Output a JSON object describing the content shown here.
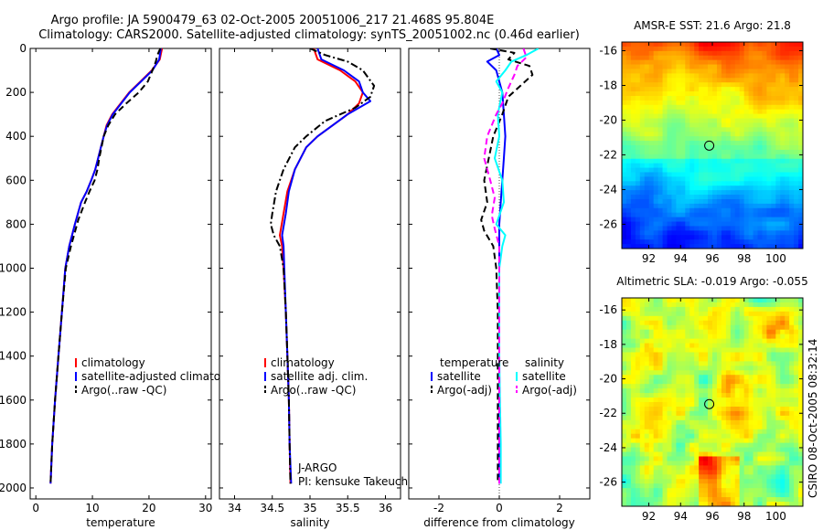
{
  "header": {
    "title_line1": "Argo profile: JA 5900479_63 02-Oct-2005 20051006_217 21.468S 95.804E",
    "title_line2": "Climatology: CARS2000. Satellite-adjusted climatology: synTS_20051002.nc (0.46d earlier)"
  },
  "side_label": "CSIRO 08-Oct-2005 08:32:14",
  "colors": {
    "red": "#ff0000",
    "blue": "#0000ff",
    "black": "#000000",
    "cyan": "#00ffff",
    "magenta": "#ff00ff"
  },
  "chart_data": [
    {
      "type": "line",
      "id": "temperature",
      "xlabel": "temperature",
      "ylabel": "",
      "xlim": [
        -1,
        31
      ],
      "ylim": [
        0,
        2050
      ],
      "y_inverted": true,
      "xticks": [
        0,
        10,
        20,
        30
      ],
      "yticks": [
        0,
        200,
        400,
        600,
        800,
        1000,
        1200,
        1400,
        1600,
        1800,
        2000
      ],
      "legend": {
        "position": "lower-middle",
        "entries": [
          "climatology",
          "satellite-adjusted climatology",
          "Argo(..raw -QC)"
        ]
      },
      "series": [
        {
          "name": "climatology",
          "color": "red",
          "dash": "solid",
          "points": [
            [
              22.3,
              0
            ],
            [
              21.9,
              50
            ],
            [
              20.5,
              100
            ],
            [
              18.5,
              150
            ],
            [
              16.5,
              200
            ],
            [
              15,
              250
            ],
            [
              13.5,
              300
            ],
            [
              12.5,
              350
            ],
            [
              12,
              400
            ],
            [
              11.5,
              450
            ],
            [
              11,
              500
            ],
            [
              10.5,
              550
            ],
            [
              9.8,
              600
            ],
            [
              9,
              650
            ],
            [
              8,
              700
            ],
            [
              6.9,
              800
            ],
            [
              5.9,
              900
            ],
            [
              5.2,
              1000
            ],
            [
              4.6,
              1200
            ],
            [
              4,
              1400
            ],
            [
              3.4,
              1600
            ],
            [
              2.9,
              1800
            ],
            [
              2.6,
              1980
            ]
          ]
        },
        {
          "name": "satellite-adjusted climatology",
          "color": "blue",
          "dash": "solid",
          "points": [
            [
              22.1,
              0
            ],
            [
              21.8,
              50
            ],
            [
              20.6,
              100
            ],
            [
              18.6,
              150
            ],
            [
              16.6,
              200
            ],
            [
              15.1,
              250
            ],
            [
              13.6,
              300
            ],
            [
              12.6,
              350
            ],
            [
              12,
              400
            ],
            [
              11.5,
              450
            ],
            [
              11,
              500
            ],
            [
              10.5,
              550
            ],
            [
              9.8,
              600
            ],
            [
              9,
              650
            ],
            [
              8,
              700
            ],
            [
              6.9,
              800
            ],
            [
              5.9,
              900
            ],
            [
              5.2,
              1000
            ],
            [
              4.6,
              1200
            ],
            [
              4,
              1400
            ],
            [
              3.4,
              1600
            ],
            [
              2.9,
              1800
            ],
            [
              2.6,
              1980
            ]
          ]
        },
        {
          "name": "Argo(..raw -QC)",
          "color": "black",
          "dash": "dash",
          "points": [
            [
              22,
              0
            ],
            [
              21.5,
              30
            ],
            [
              21.2,
              60
            ],
            [
              20.6,
              100
            ],
            [
              19.8,
              150
            ],
            [
              18.2,
              200
            ],
            [
              16,
              250
            ],
            [
              14,
              300
            ],
            [
              12.8,
              350
            ],
            [
              12,
              400
            ],
            [
              11.6,
              450
            ],
            [
              11.2,
              500
            ],
            [
              10.9,
              550
            ],
            [
              10.4,
              600
            ],
            [
              9.5,
              650
            ],
            [
              8.7,
              700
            ],
            [
              7.5,
              780
            ],
            [
              6.2,
              900
            ],
            [
              5.3,
              1000
            ],
            [
              4.6,
              1200
            ],
            [
              4,
              1400
            ],
            [
              3.4,
              1600
            ],
            [
              2.9,
              1800
            ],
            [
              2.6,
              1980
            ]
          ]
        }
      ]
    },
    {
      "type": "line",
      "id": "salinity",
      "xlabel": "salinity",
      "ylabel": "",
      "xlim": [
        33.8,
        36.2
      ],
      "ylim": [
        0,
        2050
      ],
      "y_inverted": true,
      "xticks": [
        34,
        34.5,
        35,
        35.5,
        36
      ],
      "yticks": [
        0,
        200,
        400,
        600,
        800,
        1000,
        1200,
        1400,
        1600,
        1800,
        2000
      ],
      "legend": {
        "position": "lower-middle",
        "entries": [
          "climatology",
          "satellite adj. clim.",
          "Argo(..raw -QC)"
        ]
      },
      "annotations": [
        "J-ARGO",
        "PI: kensuke Takeuchi"
      ],
      "series": [
        {
          "name": "climatology",
          "color": "red",
          "dash": "solid",
          "points": [
            [
              35.05,
              0
            ],
            [
              35.1,
              50
            ],
            [
              35.4,
              100
            ],
            [
              35.6,
              150
            ],
            [
              35.7,
              200
            ],
            [
              35.65,
              250
            ],
            [
              35.5,
              300
            ],
            [
              35.3,
              350
            ],
            [
              35.1,
              400
            ],
            [
              34.95,
              450
            ],
            [
              34.8,
              550
            ],
            [
              34.7,
              650
            ],
            [
              34.65,
              750
            ],
            [
              34.6,
              850
            ],
            [
              34.63,
              900
            ],
            [
              34.65,
              1000
            ],
            [
              34.68,
              1200
            ],
            [
              34.7,
              1400
            ],
            [
              34.72,
              1600
            ],
            [
              34.73,
              1800
            ],
            [
              34.74,
              1980
            ]
          ]
        },
        {
          "name": "satellite adj. clim.",
          "color": "blue",
          "dash": "solid",
          "points": [
            [
              35.1,
              0
            ],
            [
              35.15,
              50
            ],
            [
              35.45,
              100
            ],
            [
              35.65,
              150
            ],
            [
              35.7,
              200
            ],
            [
              35.8,
              240
            ],
            [
              35.5,
              300
            ],
            [
              35.3,
              350
            ],
            [
              35.1,
              400
            ],
            [
              34.95,
              450
            ],
            [
              34.8,
              550
            ],
            [
              34.72,
              650
            ],
            [
              34.68,
              750
            ],
            [
              34.63,
              850
            ],
            [
              34.65,
              900
            ],
            [
              34.66,
              1000
            ],
            [
              34.68,
              1200
            ],
            [
              34.7,
              1400
            ],
            [
              34.72,
              1600
            ],
            [
              34.73,
              1800
            ],
            [
              34.75,
              1980
            ]
          ]
        },
        {
          "name": "Argo(..raw -QC)",
          "color": "black",
          "dash": "dashdot",
          "points": [
            [
              35,
              0
            ],
            [
              35.2,
              30
            ],
            [
              35.5,
              60
            ],
            [
              35.7,
              100
            ],
            [
              35.85,
              170
            ],
            [
              35.8,
              220
            ],
            [
              35.6,
              270
            ],
            [
              35.2,
              330
            ],
            [
              34.95,
              400
            ],
            [
              34.8,
              450
            ],
            [
              34.65,
              550
            ],
            [
              34.55,
              650
            ],
            [
              34.5,
              750
            ],
            [
              34.48,
              800
            ],
            [
              34.52,
              850
            ],
            [
              34.6,
              900
            ],
            [
              34.65,
              1000
            ],
            [
              34.68,
              1200
            ],
            [
              34.7,
              1400
            ],
            [
              34.72,
              1600
            ],
            [
              34.73,
              1800
            ],
            [
              34.74,
              1980
            ]
          ]
        }
      ]
    },
    {
      "type": "line",
      "id": "difference",
      "xlabel": "difference from climatology",
      "ylabel": "",
      "xlim": [
        -3,
        3
      ],
      "ylim": [
        0,
        2050
      ],
      "y_inverted": true,
      "xticks": [
        -2,
        0,
        2
      ],
      "yticks": [
        0,
        200,
        400,
        600,
        800,
        1000,
        1200,
        1400,
        1600,
        1800,
        2000
      ],
      "legend": {
        "position": "lower-middle",
        "groups": [
          {
            "title": "temperature",
            "entries": [
              "satellite",
              "Argo(-adj)"
            ]
          },
          {
            "title": "salinity",
            "entries": [
              "satellite",
              "Argo(-adj)"
            ]
          }
        ]
      },
      "series": [
        {
          "name": "temperature satellite",
          "color": "blue",
          "dash": "solid",
          "points": [
            [
              -0.1,
              0
            ],
            [
              0,
              30
            ],
            [
              -0.4,
              60
            ],
            [
              -0.1,
              100
            ],
            [
              0,
              150
            ],
            [
              0.1,
              200
            ],
            [
              0.15,
              300
            ],
            [
              0.2,
              400
            ],
            [
              0.15,
              500
            ],
            [
              0.1,
              600
            ],
            [
              0.05,
              700
            ],
            [
              0,
              800
            ],
            [
              0,
              1000
            ],
            [
              0,
              1200
            ],
            [
              0,
              1400
            ],
            [
              0,
              1600
            ],
            [
              0,
              1800
            ],
            [
              0,
              1980
            ]
          ]
        },
        {
          "name": "temperature Argo(-adj)",
          "color": "black",
          "dash": "dash",
          "points": [
            [
              -0.3,
              0
            ],
            [
              0.5,
              20
            ],
            [
              0.3,
              50
            ],
            [
              1,
              80
            ],
            [
              1.1,
              120
            ],
            [
              0.7,
              170
            ],
            [
              0.3,
              220
            ],
            [
              0.1,
              300
            ],
            [
              -0.2,
              400
            ],
            [
              -0.35,
              500
            ],
            [
              -0.5,
              600
            ],
            [
              -0.4,
              700
            ],
            [
              -0.6,
              780
            ],
            [
              -0.5,
              830
            ],
            [
              -0.2,
              900
            ],
            [
              -0.1,
              1000
            ],
            [
              -0.05,
              1200
            ],
            [
              -0.05,
              1400
            ],
            [
              -0.05,
              1600
            ],
            [
              -0.05,
              1800
            ],
            [
              -0.05,
              1980
            ]
          ]
        },
        {
          "name": "salinity satellite",
          "color": "cyan",
          "dash": "solid",
          "points": [
            [
              1.3,
              0
            ],
            [
              0.9,
              30
            ],
            [
              0.4,
              60
            ],
            [
              0.2,
              100
            ],
            [
              -0.1,
              150
            ],
            [
              0.1,
              200
            ],
            [
              -0.05,
              300
            ],
            [
              0,
              400
            ],
            [
              -0.15,
              500
            ],
            [
              0.1,
              600
            ],
            [
              0.15,
              700
            ],
            [
              -0.1,
              800
            ],
            [
              0.2,
              850
            ],
            [
              0.1,
              900
            ],
            [
              0,
              1000
            ],
            [
              0,
              1200
            ],
            [
              0,
              1400
            ],
            [
              0.02,
              1600
            ],
            [
              0.05,
              1800
            ],
            [
              0.05,
              1980
            ]
          ]
        },
        {
          "name": "salinity Argo(-adj)",
          "color": "magenta",
          "dash": "dash",
          "points": [
            [
              0.8,
              0
            ],
            [
              0.9,
              40
            ],
            [
              0.6,
              80
            ],
            [
              0.5,
              120
            ],
            [
              0.3,
              180
            ],
            [
              0.1,
              250
            ],
            [
              -0.1,
              300
            ],
            [
              -0.4,
              400
            ],
            [
              -0.5,
              500
            ],
            [
              -0.3,
              600
            ],
            [
              -0.15,
              680
            ],
            [
              -0.25,
              760
            ],
            [
              -0.15,
              820
            ],
            [
              0,
              900
            ],
            [
              0,
              1000
            ],
            [
              0,
              1200
            ],
            [
              0,
              1400
            ],
            [
              0,
              1600
            ],
            [
              0,
              1800
            ],
            [
              0,
              1980
            ]
          ]
        }
      ]
    },
    {
      "type": "heatmap",
      "id": "sst",
      "title": "AMSR-E SST: 21.6 Argo: 21.8",
      "xlim": [
        90.3,
        101.7
      ],
      "ylim": [
        -27.4,
        -15.5
      ],
      "xticks": [
        92,
        94,
        96,
        98,
        100
      ],
      "yticks": [
        -16,
        -18,
        -20,
        -22,
        -24,
        -26
      ],
      "marker": {
        "lon": 95.804,
        "lat": -21.468
      }
    },
    {
      "type": "heatmap",
      "id": "sla",
      "title": "Altimetric SLA: -0.019 Argo: -0.055",
      "xlim": [
        90.3,
        101.7
      ],
      "ylim": [
        -27.4,
        -15.3
      ],
      "xticks": [
        92,
        94,
        96,
        98,
        100
      ],
      "yticks": [
        -16,
        -18,
        -20,
        -22,
        -24,
        -26
      ],
      "marker": {
        "lon": 95.804,
        "lat": -21.468
      }
    }
  ]
}
